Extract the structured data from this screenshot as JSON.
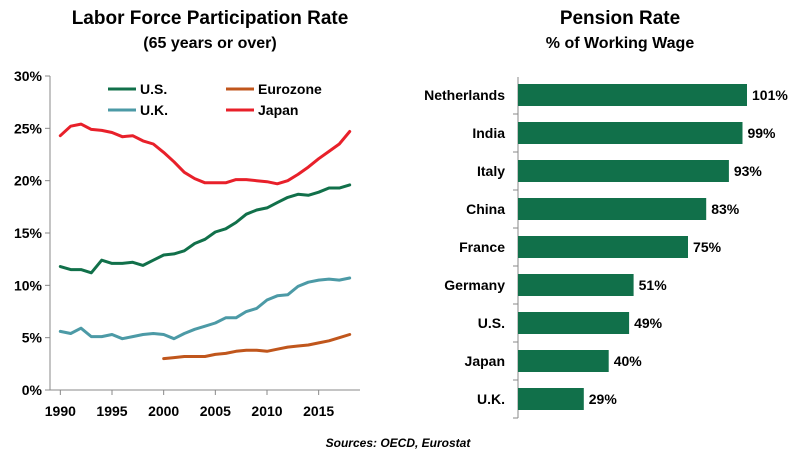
{
  "chart_data": [
    {
      "type": "line",
      "title": "Labor Force Participation Rate",
      "subtitle": "(65 years or over)",
      "xlabel": "",
      "ylabel": "",
      "xlim": [
        1989,
        2019
      ],
      "ylim": [
        0,
        30
      ],
      "x_ticks": [
        1990,
        1995,
        2000,
        2005,
        2010,
        2015
      ],
      "y_ticks": [
        0,
        5,
        10,
        15,
        20,
        25,
        30
      ],
      "y_tick_labels": [
        "0%",
        "5%",
        "10%",
        "15%",
        "20%",
        "25%",
        "30%"
      ],
      "grid": false,
      "legend_position": "top",
      "series": [
        {
          "name": "U.S.",
          "color": "#11704a",
          "x": [
            1990,
            1991,
            1992,
            1993,
            1994,
            1995,
            1996,
            1997,
            1998,
            1999,
            2000,
            2001,
            2002,
            2003,
            2004,
            2005,
            2006,
            2007,
            2008,
            2009,
            2010,
            2011,
            2012,
            2013,
            2014,
            2015,
            2016,
            2017,
            2018
          ],
          "y": [
            11.8,
            11.5,
            11.5,
            11.2,
            12.4,
            12.1,
            12.1,
            12.2,
            11.9,
            12.4,
            12.9,
            13.0,
            13.3,
            14.0,
            14.4,
            15.1,
            15.4,
            16.0,
            16.8,
            17.2,
            17.4,
            17.9,
            18.4,
            18.7,
            18.6,
            18.9,
            19.3,
            19.3,
            19.6
          ]
        },
        {
          "name": "Eurozone",
          "color": "#c0561c",
          "x": [
            2000,
            2001,
            2002,
            2003,
            2004,
            2005,
            2006,
            2007,
            2008,
            2009,
            2010,
            2011,
            2012,
            2013,
            2014,
            2015,
            2016,
            2017,
            2018
          ],
          "y": [
            3.0,
            3.1,
            3.2,
            3.2,
            3.2,
            3.4,
            3.5,
            3.7,
            3.8,
            3.8,
            3.7,
            3.9,
            4.1,
            4.2,
            4.3,
            4.5,
            4.7,
            5.0,
            5.3
          ]
        },
        {
          "name": "U.K.",
          "color": "#4c9aa6",
          "x": [
            1990,
            1991,
            1992,
            1993,
            1994,
            1995,
            1996,
            1997,
            1998,
            1999,
            2000,
            2001,
            2002,
            2003,
            2004,
            2005,
            2006,
            2007,
            2008,
            2009,
            2010,
            2011,
            2012,
            2013,
            2014,
            2015,
            2016,
            2017,
            2018
          ],
          "y": [
            5.6,
            5.4,
            5.9,
            5.1,
            5.1,
            5.3,
            4.9,
            5.1,
            5.3,
            5.4,
            5.3,
            4.9,
            5.4,
            5.8,
            6.1,
            6.4,
            6.9,
            6.9,
            7.5,
            7.8,
            8.6,
            9.0,
            9.1,
            9.9,
            10.3,
            10.5,
            10.6,
            10.5,
            10.7
          ]
        },
        {
          "name": "Japan",
          "color": "#e8202a",
          "x": [
            1990,
            1991,
            1992,
            1993,
            1994,
            1995,
            1996,
            1997,
            1998,
            1999,
            2000,
            2001,
            2002,
            2003,
            2004,
            2005,
            2006,
            2007,
            2008,
            2009,
            2010,
            2011,
            2012,
            2013,
            2014,
            2015,
            2016,
            2017,
            2018
          ],
          "y": [
            24.3,
            25.2,
            25.4,
            24.9,
            24.8,
            24.6,
            24.2,
            24.3,
            23.8,
            23.5,
            22.7,
            21.8,
            20.8,
            20.2,
            19.8,
            19.8,
            19.8,
            20.1,
            20.1,
            20.0,
            19.9,
            19.7,
            20.0,
            20.6,
            21.3,
            22.1,
            22.8,
            23.5,
            24.7
          ]
        }
      ]
    },
    {
      "type": "bar",
      "orientation": "horizontal",
      "title": "Pension Rate",
      "subtitle": "% of Working Wage",
      "xlabel": "",
      "ylabel": "",
      "xlim": [
        0,
        101
      ],
      "color": "#11704a",
      "categories": [
        "Netherlands",
        "India",
        "Italy",
        "China",
        "France",
        "Germany",
        "U.S.",
        "Japan",
        "U.K."
      ],
      "values": [
        101,
        99,
        93,
        83,
        75,
        51,
        49,
        40,
        29
      ],
      "value_labels": [
        "101%",
        "99%",
        "93%",
        "83%",
        "75%",
        "51%",
        "49%",
        "40%",
        "29%"
      ]
    }
  ],
  "footer": {
    "source": "Sources: OECD, Eurostat"
  }
}
